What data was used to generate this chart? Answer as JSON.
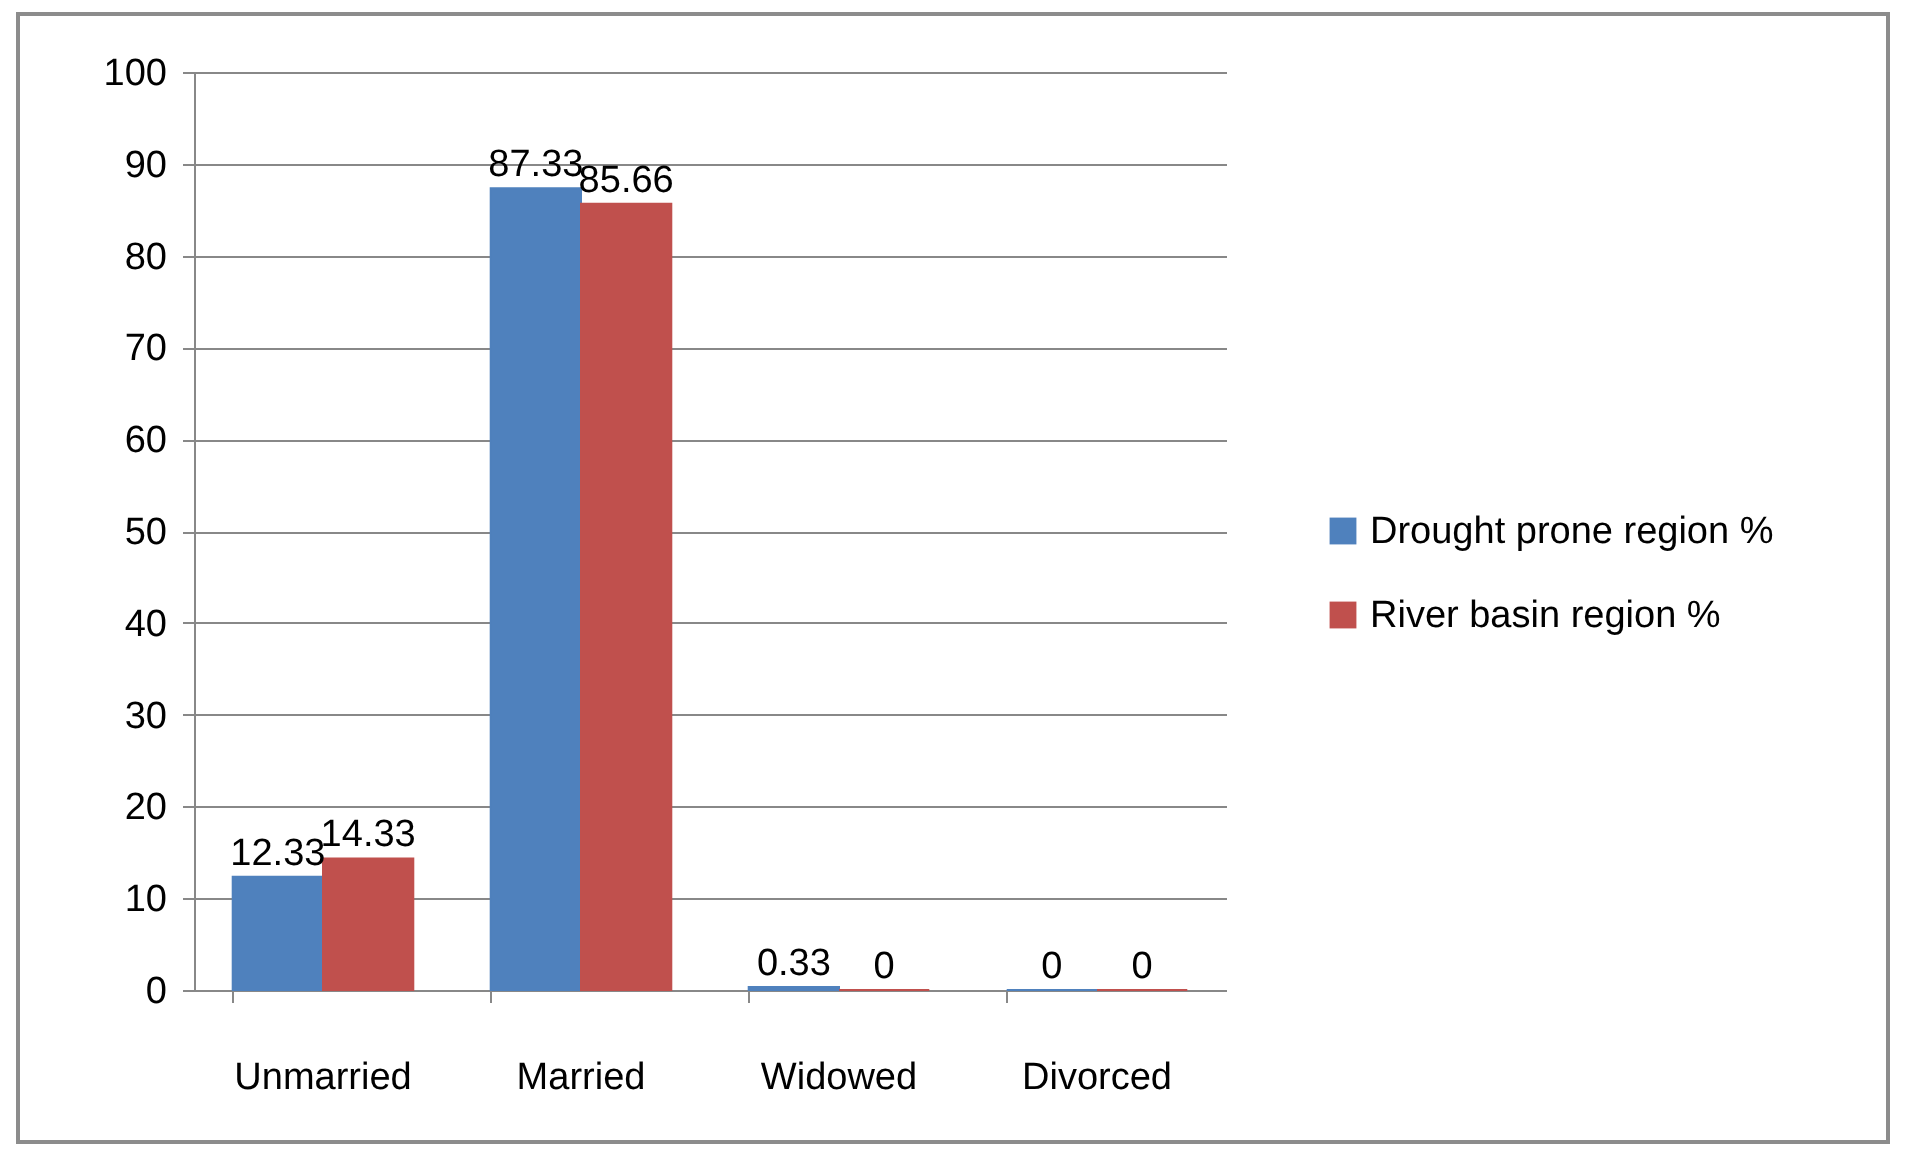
{
  "chart_data": {
    "type": "bar",
    "categories": [
      "Unmarried",
      "Married",
      "Widowed",
      "Divorced"
    ],
    "series": [
      {
        "name": "Drought prone region %",
        "color": "#4f81bd",
        "values": [
          12.33,
          87.33,
          0.33,
          0
        ]
      },
      {
        "name": "River basin region %",
        "color": "#c0504d",
        "values": [
          14.33,
          85.66,
          0,
          0
        ]
      }
    ],
    "ylim": [
      0,
      100
    ],
    "yticks": [
      0,
      10,
      20,
      30,
      40,
      50,
      60,
      70,
      80,
      90,
      100
    ],
    "grid": "y",
    "legend": "right",
    "data_labels": true
  }
}
